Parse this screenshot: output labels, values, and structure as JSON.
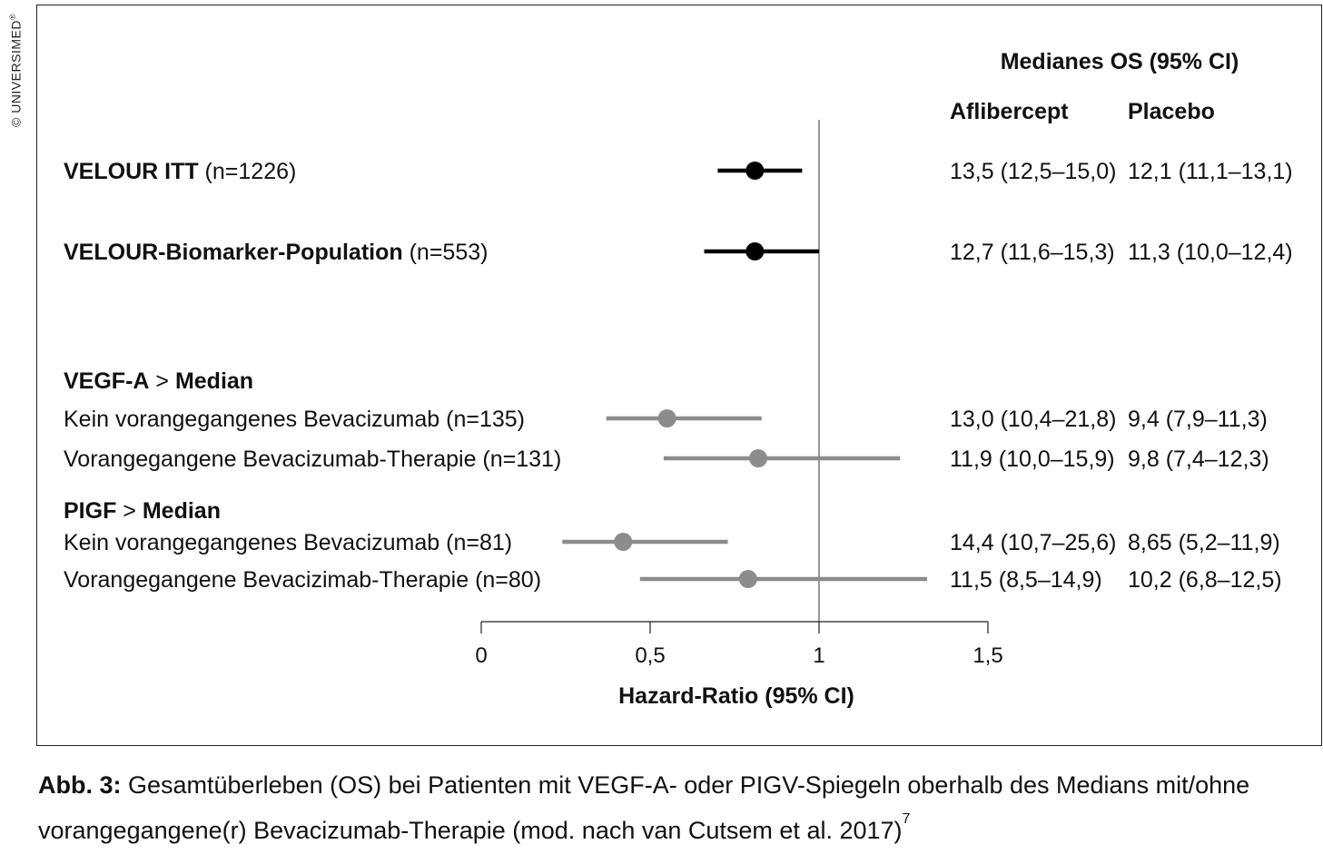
{
  "watermark": "© UNIVERSIMED",
  "watermark_mark": "®",
  "chart_data": {
    "type": "forest",
    "header_title": "Medianes OS (95% CI)",
    "col_headers": [
      "Aflibercept",
      "Placebo"
    ],
    "xlabel": "Hazard-Ratio (95% CI)",
    "xlim": [
      0,
      1.5
    ],
    "ticks": [
      "0",
      "0,5",
      "1",
      "1,5"
    ],
    "reference_line": 1,
    "groups": [
      "VEGF-A > Median",
      "PIGF > Median"
    ],
    "rows": [
      {
        "label_bold": "VELOUR ITT",
        "label_plain": " (n=1226)",
        "hr": 0.81,
        "ci": [
          0.7,
          0.95
        ],
        "color": "#000000",
        "aflibercept": "13,5 (12,5–15,0)",
        "placebo": "12,1 (11,1–13,1)"
      },
      {
        "label_bold": "VELOUR-Biomarker-Population",
        "label_plain": " (n=553)",
        "hr": 0.81,
        "ci": [
          0.66,
          1.0
        ],
        "color": "#000000",
        "aflibercept": "12,7 (11,6–15,3)",
        "placebo": "11,3 (10,0–12,4)"
      },
      {
        "label_bold": "",
        "label_plain": "Kein vorangegangenes Bevacizumab (n=135)",
        "hr": 0.55,
        "ci": [
          0.37,
          0.83
        ],
        "color": "#8c8c8c",
        "aflibercept": "13,0 (10,4–21,8)",
        "placebo": "9,4 (7,9–11,3)"
      },
      {
        "label_bold": "",
        "label_plain": "Vorangegangene Bevacizumab-Therapie (n=131)",
        "hr": 0.82,
        "ci": [
          0.54,
          1.24
        ],
        "color": "#8c8c8c",
        "aflibercept": "11,9 (10,0–15,9)",
        "placebo": "9,8 (7,4–12,3)"
      },
      {
        "label_bold": "",
        "label_plain": "Kein vorangegangenes Bevacizumab (n=81)",
        "hr": 0.42,
        "ci": [
          0.24,
          0.73
        ],
        "color": "#8c8c8c",
        "aflibercept": "14,4 (10,7–25,6)",
        "placebo": "8,65 (5,2–11,9)"
      },
      {
        "label_bold": "",
        "label_plain": "Vorangegangene Bevacizimab-Therapie (n=80)",
        "hr": 0.79,
        "ci": [
          0.47,
          1.32
        ],
        "color": "#8c8c8c",
        "aflibercept": "11,5 (8,5–14,9)",
        "placebo": "10,2 (6,8–12,5)"
      }
    ]
  },
  "caption": {
    "label": "Abb. 3:",
    "text": " Gesamtüberleben (OS) bei Patienten mit VEGF-A- oder PIGV-Spiegeln oberhalb des Medians mit/ohne vorangegangene(r) Bevacizumab-Therapie (mod. nach van Cutsem et al. 2017)",
    "superscript": "7"
  }
}
